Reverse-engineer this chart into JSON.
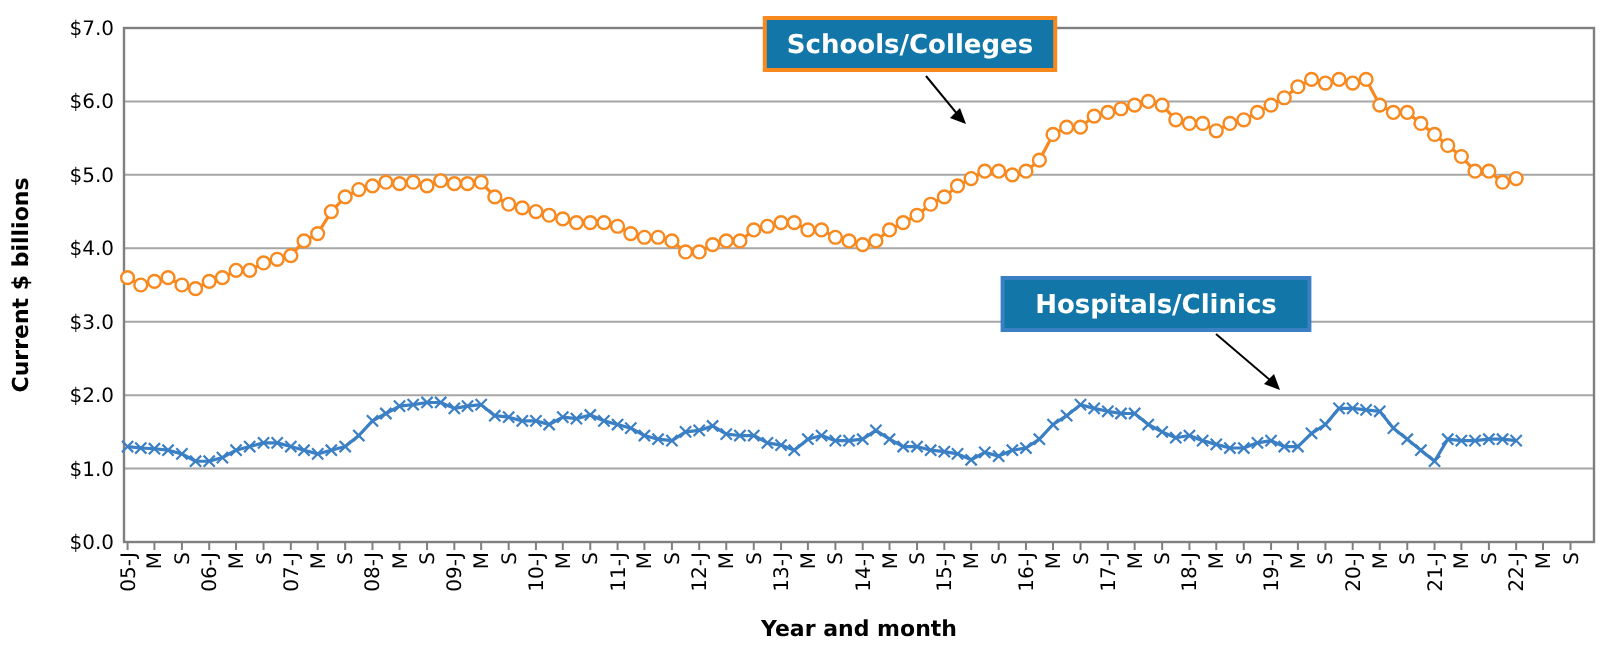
{
  "chart_data": {
    "type": "line",
    "xlabel": "Year and month",
    "ylabel": "Current $ billions",
    "xlim": [
      "2004-12-16",
      "2022-12-15"
    ],
    "xticks": [
      {
        "value": "2005-01",
        "label": "05-J"
      },
      {
        "value": "2005-05",
        "label": "M"
      },
      {
        "value": "2005-09",
        "label": "S"
      },
      {
        "value": "2006-01",
        "label": "06-J"
      },
      {
        "value": "2006-05",
        "label": "M"
      },
      {
        "value": "2006-09",
        "label": "S"
      },
      {
        "value": "2007-01",
        "label": "07-J"
      },
      {
        "value": "2007-05",
        "label": "M"
      },
      {
        "value": "2007-09",
        "label": "S"
      },
      {
        "value": "2008-01",
        "label": "08-J"
      },
      {
        "value": "2008-05",
        "label": "M"
      },
      {
        "value": "2008-09",
        "label": "S"
      },
      {
        "value": "2009-01",
        "label": "09-J"
      },
      {
        "value": "2009-05",
        "label": "M"
      },
      {
        "value": "2009-09",
        "label": "S"
      },
      {
        "value": "2010-01",
        "label": "10-J"
      },
      {
        "value": "2010-05",
        "label": "M"
      },
      {
        "value": "2010-09",
        "label": "S"
      },
      {
        "value": "2011-01",
        "label": "11-J"
      },
      {
        "value": "2011-05",
        "label": "M"
      },
      {
        "value": "2011-09",
        "label": "S"
      },
      {
        "value": "2012-01",
        "label": "12-J"
      },
      {
        "value": "2012-05",
        "label": "M"
      },
      {
        "value": "2012-09",
        "label": "S"
      },
      {
        "value": "2013-01",
        "label": "13-J"
      },
      {
        "value": "2013-05",
        "label": "M"
      },
      {
        "value": "2013-09",
        "label": "S"
      },
      {
        "value": "2014-01",
        "label": "14-J"
      },
      {
        "value": "2014-05",
        "label": "M"
      },
      {
        "value": "2014-09",
        "label": "S"
      },
      {
        "value": "2015-01",
        "label": "15-J"
      },
      {
        "value": "2015-05",
        "label": "M"
      },
      {
        "value": "2015-09",
        "label": "S"
      },
      {
        "value": "2016-01",
        "label": "16-J"
      },
      {
        "value": "2016-05",
        "label": "M"
      },
      {
        "value": "2016-09",
        "label": "S"
      },
      {
        "value": "2017-01",
        "label": "17-J"
      },
      {
        "value": "2017-05",
        "label": "M"
      },
      {
        "value": "2017-09",
        "label": "S"
      },
      {
        "value": "2018-01",
        "label": "18-J"
      },
      {
        "value": "2018-05",
        "label": "M"
      },
      {
        "value": "2018-09",
        "label": "S"
      },
      {
        "value": "2019-01",
        "label": "19-J"
      },
      {
        "value": "2019-05",
        "label": "M"
      },
      {
        "value": "2019-09",
        "label": "S"
      },
      {
        "value": "2020-01",
        "label": "20-J"
      },
      {
        "value": "2020-05",
        "label": "M"
      },
      {
        "value": "2020-09",
        "label": "S"
      },
      {
        "value": "2021-01",
        "label": "21-J"
      },
      {
        "value": "2021-05",
        "label": "M"
      },
      {
        "value": "2021-09",
        "label": "S"
      },
      {
        "value": "2022-01",
        "label": "22-J"
      },
      {
        "value": "2022-05",
        "label": "M"
      },
      {
        "value": "2022-09",
        "label": "S"
      }
    ],
    "ylim": [
      0,
      7
    ],
    "yticks": [
      {
        "value": 0,
        "label": "$0.0"
      },
      {
        "value": 1,
        "label": "$1.0"
      },
      {
        "value": 2,
        "label": "$2.0"
      },
      {
        "value": 3,
        "label": "$3.0"
      },
      {
        "value": 4,
        "label": "$4.0"
      },
      {
        "value": 5,
        "label": "$5.0"
      },
      {
        "value": 6,
        "label": "$6.0"
      },
      {
        "value": 7,
        "label": "$7.0"
      }
    ],
    "grid": "y",
    "x": [
      "2005-01",
      "2005-03",
      "2005-05",
      "2005-07",
      "2005-09",
      "2005-11",
      "2006-01",
      "2006-03",
      "2006-05",
      "2006-07",
      "2006-09",
      "2006-11",
      "2007-01",
      "2007-03",
      "2007-05",
      "2007-07",
      "2007-09",
      "2007-11",
      "2008-01",
      "2008-03",
      "2008-05",
      "2008-07",
      "2008-09",
      "2008-11",
      "2009-01",
      "2009-03",
      "2009-05",
      "2009-07",
      "2009-09",
      "2009-11",
      "2010-01",
      "2010-03",
      "2010-05",
      "2010-07",
      "2010-09",
      "2010-11",
      "2011-01",
      "2011-03",
      "2011-05",
      "2011-07",
      "2011-09",
      "2011-11",
      "2012-01",
      "2012-03",
      "2012-05",
      "2012-07",
      "2012-09",
      "2012-11",
      "2013-01",
      "2013-03",
      "2013-05",
      "2013-07",
      "2013-09",
      "2013-11",
      "2014-01",
      "2014-03",
      "2014-05",
      "2014-07",
      "2014-09",
      "2014-11",
      "2015-01",
      "2015-03",
      "2015-05",
      "2015-07",
      "2015-09",
      "2015-11",
      "2016-01",
      "2016-03",
      "2016-05",
      "2016-07",
      "2016-09",
      "2016-11",
      "2017-01",
      "2017-03",
      "2017-05",
      "2017-07",
      "2017-09",
      "2017-11",
      "2018-01",
      "2018-03",
      "2018-05",
      "2018-07",
      "2018-09",
      "2018-11",
      "2019-01",
      "2019-03",
      "2019-05",
      "2019-07",
      "2019-09",
      "2019-11",
      "2020-01",
      "2020-03",
      "2020-05",
      "2020-07",
      "2020-09",
      "2020-11",
      "2021-01",
      "2021-03",
      "2021-05",
      "2021-07",
      "2021-09",
      "2021-11",
      "2022-01"
    ],
    "series": [
      {
        "name": "Schools/Colleges",
        "color": "#f7891f",
        "marker": "circle",
        "values": [
          3.6,
          3.5,
          3.55,
          3.6,
          3.5,
          3.45,
          3.55,
          3.6,
          3.7,
          3.7,
          3.8,
          3.85,
          3.9,
          4.1,
          4.2,
          4.5,
          4.7,
          4.8,
          4.85,
          4.9,
          4.88,
          4.9,
          4.85,
          4.92,
          4.88,
          4.88,
          4.9,
          4.7,
          4.6,
          4.55,
          4.5,
          4.45,
          4.4,
          4.35,
          4.35,
          4.35,
          4.3,
          4.2,
          4.15,
          4.15,
          4.1,
          3.95,
          3.95,
          4.05,
          4.1,
          4.1,
          4.25,
          4.3,
          4.35,
          4.35,
          4.25,
          4.25,
          4.15,
          4.1,
          4.05,
          4.1,
          4.25,
          4.35,
          4.45,
          4.6,
          4.7,
          4.85,
          4.95,
          5.05,
          5.05,
          5.0,
          5.05,
          5.2,
          5.55,
          5.65,
          5.65,
          5.8,
          5.85,
          5.9,
          5.95,
          6.0,
          5.95,
          5.75,
          5.7,
          5.7,
          5.6,
          5.7,
          5.75,
          5.85,
          5.95,
          6.05,
          6.2,
          6.3,
          6.25,
          6.3,
          6.25,
          6.3,
          5.95,
          5.85,
          5.85,
          5.7,
          5.55,
          5.4,
          5.25,
          5.05,
          5.05,
          4.9,
          4.95
        ]
      },
      {
        "name": "Hospitals/Clinics",
        "color": "#3b7fc4",
        "marker": "cross",
        "values": [
          1.3,
          1.28,
          1.27,
          1.25,
          1.2,
          1.1,
          1.1,
          1.15,
          1.25,
          1.3,
          1.35,
          1.35,
          1.3,
          1.25,
          1.2,
          1.25,
          1.3,
          1.45,
          1.65,
          1.75,
          1.85,
          1.87,
          1.9,
          1.9,
          1.82,
          1.85,
          1.87,
          1.72,
          1.7,
          1.65,
          1.65,
          1.6,
          1.7,
          1.68,
          1.73,
          1.65,
          1.6,
          1.55,
          1.45,
          1.4,
          1.38,
          1.5,
          1.52,
          1.58,
          1.47,
          1.45,
          1.45,
          1.35,
          1.32,
          1.25,
          1.4,
          1.45,
          1.38,
          1.38,
          1.4,
          1.52,
          1.4,
          1.3,
          1.3,
          1.25,
          1.23,
          1.2,
          1.12,
          1.22,
          1.17,
          1.25,
          1.28,
          1.4,
          1.6,
          1.72,
          1.87,
          1.82,
          1.78,
          1.75,
          1.75,
          1.6,
          1.5,
          1.42,
          1.45,
          1.38,
          1.33,
          1.28,
          1.28,
          1.35,
          1.38,
          1.3,
          1.3,
          1.48,
          1.6,
          1.82,
          1.82,
          1.8,
          1.78,
          1.55,
          1.4,
          1.25,
          1.1,
          1.4,
          1.38,
          1.38,
          1.4,
          1.4,
          1.38
        ]
      }
    ]
  }
}
